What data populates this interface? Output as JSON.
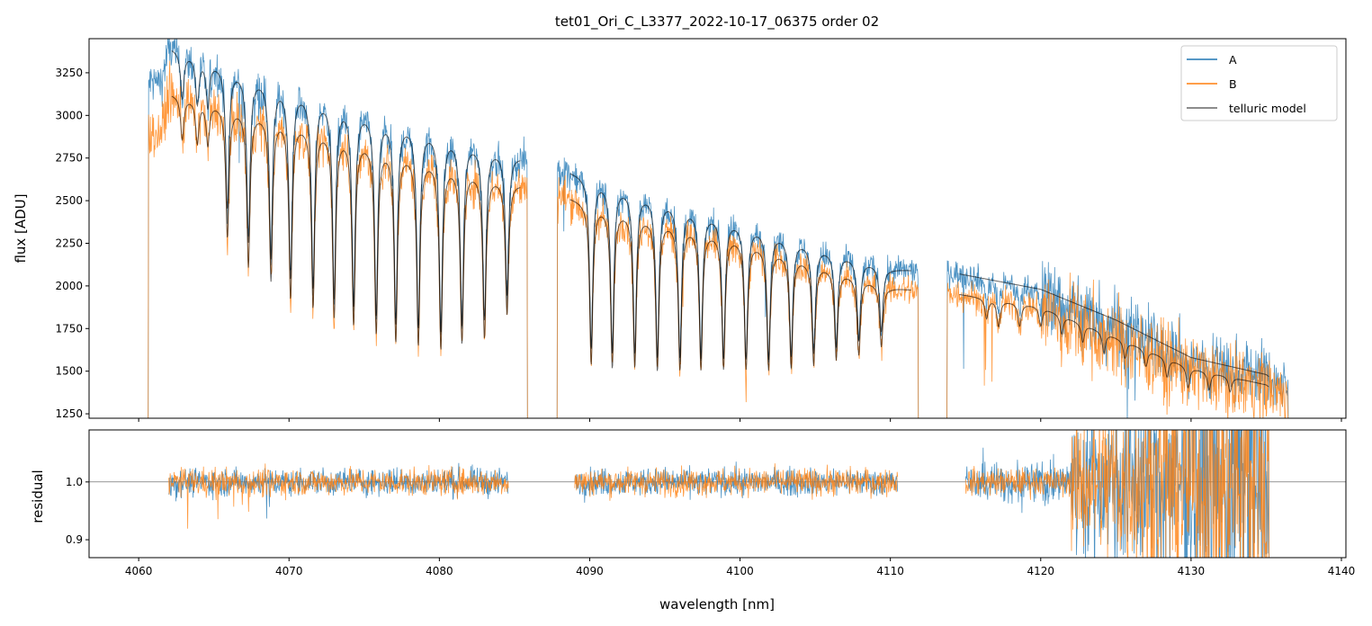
{
  "chart_data": [
    {
      "type": "line",
      "panel": "top",
      "title": "tet01_Ori_C_L3377_2022-10-17_06375  order 02",
      "xlabel": "",
      "ylabel": "flux [ADU]",
      "xlim": [
        4056.7,
        4140.3
      ],
      "ylim": [
        1224,
        3450
      ],
      "x_ticks": [
        4060,
        4070,
        4080,
        4090,
        4100,
        4110,
        4120,
        4130,
        4140
      ],
      "y_ticks": [
        1250,
        1500,
        1750,
        2000,
        2250,
        2500,
        2750,
        3000,
        3250
      ],
      "y_tick_labels": [
        "1250",
        "1500",
        "1750",
        "2000",
        "2250",
        "2500",
        "2750",
        "3000",
        "3250"
      ],
      "legend": {
        "placement": "top-right",
        "entries": [
          "A",
          "B",
          "telluric model"
        ]
      },
      "segments": [
        [
          4060.6,
          4085.9
        ],
        [
          4087.8,
          4111.9
        ],
        [
          4113.7,
          4136.5
        ]
      ],
      "series": [
        {
          "name": "A",
          "color": "#1f77b4",
          "continuum_nm": [
            4061.5,
            4062,
            4070,
            4080,
            4090,
            4100,
            4110,
            4114,
            4120,
            4125,
            4130,
            4135,
            4136.5
          ],
          "continuum_flux": [
            3200,
            3400,
            3160,
            2900,
            2640,
            2370,
            2100,
            2080,
            1980,
            1800,
            1580,
            1480,
            1380
          ]
        },
        {
          "name": "B",
          "color": "#ff7f0e",
          "continuum_nm": [
            4061.5,
            4062,
            4070,
            4080,
            4090,
            4100,
            4110,
            4114,
            4120,
            4125,
            4130,
            4135,
            4136.5
          ],
          "continuum_flux": [
            2900,
            3130,
            2980,
            2730,
            2490,
            2280,
            1990,
            1960,
            1880,
            1700,
            1520,
            1420,
            1320
          ]
        },
        {
          "name": "telluric model",
          "color": "#000000"
        }
      ],
      "telluric_lines_nm": [
        4062.9,
        4063.9,
        4064.6,
        4065.9,
        4067.3,
        4068.8,
        4070.1,
        4071.6,
        4073.0,
        4074.3,
        4075.8,
        4077.1,
        4078.6,
        4080.1,
        4081.5,
        4083.0,
        4084.5,
        4090.1,
        4091.5,
        4093.0,
        4094.5,
        4096.0,
        4097.4,
        4098.9,
        4100.4,
        4101.9,
        4103.4,
        4104.9,
        4106.4,
        4107.9,
        4109.4,
        4116.4,
        4117.2,
        4118.6,
        4120.0,
        4121.4,
        4122.8,
        4124.2,
        4125.6,
        4127.0,
        4128.4,
        4129.8,
        4131.2,
        4132.6
      ],
      "telluric_line_depth": [
        0.08,
        0.08,
        0.08,
        0.25,
        0.3,
        0.32,
        0.35,
        0.36,
        0.37,
        0.38,
        0.39,
        0.4,
        0.4,
        0.4,
        0.38,
        0.36,
        0.3,
        0.38,
        0.38,
        0.37,
        0.37,
        0.36,
        0.35,
        0.34,
        0.33,
        0.32,
        0.3,
        0.28,
        0.25,
        0.22,
        0.18,
        0.06,
        0.08,
        0.07,
        0.06,
        0.06,
        0.06,
        0.07,
        0.06,
        0.06,
        0.07,
        0.08,
        0.07,
        0.06
      ]
    },
    {
      "type": "line",
      "panel": "bottom",
      "xlabel": "wavelength [nm]",
      "ylabel": "residual",
      "xlim": [
        4056.7,
        4140.3
      ],
      "ylim": [
        0.869,
        1.09
      ],
      "x_ticks": [
        4060,
        4070,
        4080,
        4090,
        4100,
        4110,
        4120,
        4130,
        4140
      ],
      "x_tick_labels": [
        "4060",
        "4070",
        "4080",
        "4090",
        "4100",
        "4110",
        "4120",
        "4130",
        "4140"
      ],
      "y_ticks": [
        0.9,
        1.0
      ],
      "y_tick_labels": [
        "0.9",
        "1.0"
      ],
      "reference_line": 1.0,
      "segments": [
        [
          4062.0,
          4084.6
        ],
        [
          4089.0,
          4110.5
        ],
        [
          4115.0,
          4135.2
        ]
      ],
      "noise_level": {
        "quiet": 0.012,
        "noisy_above_nm": 4122,
        "noisy": 0.06
      },
      "series": [
        {
          "name": "A",
          "color": "#1f77b4"
        },
        {
          "name": "B",
          "color": "#ff7f0e"
        }
      ]
    }
  ]
}
